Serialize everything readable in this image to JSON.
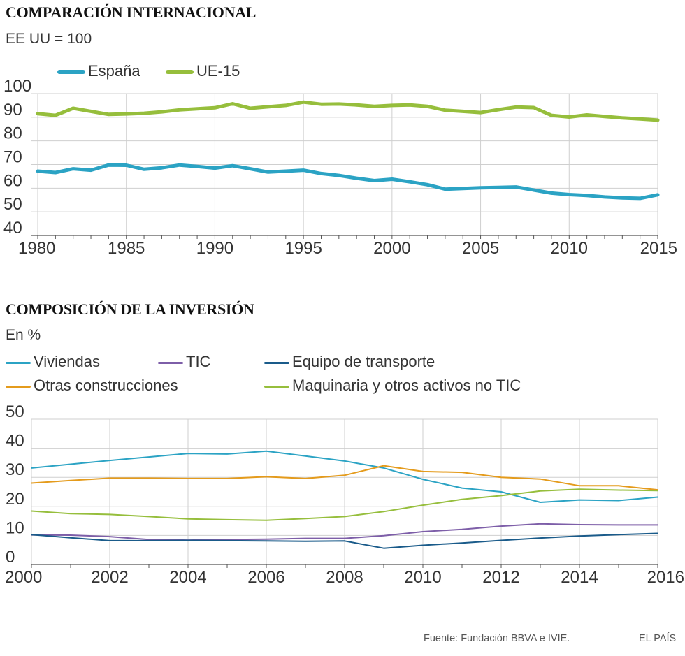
{
  "chart_data": [
    {
      "type": "line",
      "title": "COMPARACIÓN INTERNACIONAL",
      "subtitle": "EE UU = 100",
      "ylim": [
        40,
        100
      ],
      "yticks": [
        40,
        50,
        60,
        70,
        80,
        90,
        100
      ],
      "xlim": [
        1980,
        2015
      ],
      "xticks": [
        1980,
        1985,
        1990,
        1995,
        2000,
        2005,
        2010,
        2015
      ],
      "grid": true,
      "legend": "top-left",
      "x": [
        1980,
        1981,
        1982,
        1983,
        1984,
        1985,
        1986,
        1987,
        1988,
        1989,
        1990,
        1991,
        1992,
        1993,
        1994,
        1995,
        1996,
        1997,
        1998,
        1999,
        2000,
        2001,
        2002,
        2003,
        2004,
        2005,
        2006,
        2007,
        2008,
        2009,
        2010,
        2011,
        2012,
        2013,
        2014,
        2015
      ],
      "series": [
        {
          "name": "España",
          "color": "#2ba3c4",
          "values": [
            67.2,
            66.6,
            68.2,
            67.6,
            69.8,
            69.7,
            68.0,
            68.6,
            69.8,
            69.2,
            68.5,
            69.5,
            68.2,
            66.8,
            67.2,
            67.6,
            66.2,
            65.4,
            64.2,
            63.2,
            63.8,
            62.7,
            61.5,
            59.6,
            59.9,
            60.2,
            60.3,
            60.5,
            59.2,
            57.9,
            57.3,
            56.9,
            56.3,
            55.9,
            55.7,
            57.2
          ]
        },
        {
          "name": "UE-15",
          "color": "#96be3c",
          "values": [
            91.5,
            90.8,
            93.8,
            92.5,
            91.2,
            91.4,
            91.7,
            92.3,
            93.1,
            93.6,
            94.0,
            95.7,
            93.8,
            94.4,
            95.0,
            96.4,
            95.5,
            95.6,
            95.2,
            94.6,
            95.0,
            95.2,
            94.6,
            93.0,
            92.5,
            92.0,
            93.2,
            94.3,
            94.1,
            90.8,
            90.1,
            91.0,
            90.3,
            89.7,
            89.3,
            88.8
          ]
        }
      ]
    },
    {
      "type": "line",
      "title": "COMPOSICIÓN DE LA INVERSIÓN",
      "subtitle": "En %",
      "ylim": [
        0,
        50
      ],
      "yticks": [
        0,
        10,
        20,
        30,
        40,
        50
      ],
      "xlim": [
        2000,
        2016
      ],
      "xticks": [
        2000,
        2002,
        2004,
        2006,
        2008,
        2010,
        2012,
        2014,
        2016
      ],
      "grid": true,
      "legend": "top-left",
      "x": [
        2000,
        2001,
        2002,
        2003,
        2004,
        2005,
        2006,
        2007,
        2008,
        2009,
        2010,
        2011,
        2012,
        2013,
        2014,
        2015,
        2016
      ],
      "series": [
        {
          "name": "Viviendas",
          "color": "#2ba3c4",
          "values": [
            33.2,
            34.5,
            35.8,
            37.0,
            38.2,
            38.0,
            39.0,
            37.3,
            35.6,
            33.2,
            29.3,
            26.3,
            25.0,
            21.4,
            22.2,
            22.0,
            23.2
          ]
        },
        {
          "name": "TIC",
          "color": "#7d5ea8",
          "values": [
            10.2,
            10.1,
            9.6,
            8.6,
            8.4,
            8.6,
            8.7,
            9.0,
            9.0,
            9.9,
            11.3,
            12.1,
            13.2,
            14.0,
            13.7,
            13.6,
            13.6
          ]
        },
        {
          "name": "Equipo de transporte",
          "color": "#1a5b8a",
          "values": [
            10.3,
            9.2,
            8.2,
            8.2,
            8.3,
            8.2,
            8.1,
            8.0,
            8.1,
            5.6,
            6.6,
            7.4,
            8.3,
            9.1,
            9.8,
            10.3,
            10.7
          ]
        },
        {
          "name": "Otras construcciones",
          "color": "#e49b1c",
          "values": [
            28.0,
            28.9,
            29.7,
            29.7,
            29.6,
            29.6,
            30.2,
            29.6,
            30.7,
            34.0,
            32.0,
            31.7,
            30.0,
            29.4,
            27.1,
            27.1,
            25.7
          ]
        },
        {
          "name": "Maquinaria y otros activos no TIC",
          "color": "#96be3c",
          "values": [
            18.4,
            17.5,
            17.2,
            16.5,
            15.7,
            15.4,
            15.2,
            15.8,
            16.5,
            18.2,
            20.4,
            22.4,
            23.7,
            25.3,
            25.9,
            25.6,
            25.4
          ]
        }
      ]
    }
  ],
  "footer": {
    "source": "Fuente: Fundación BBVA e IVIE.",
    "publisher": "EL PAÍS"
  }
}
